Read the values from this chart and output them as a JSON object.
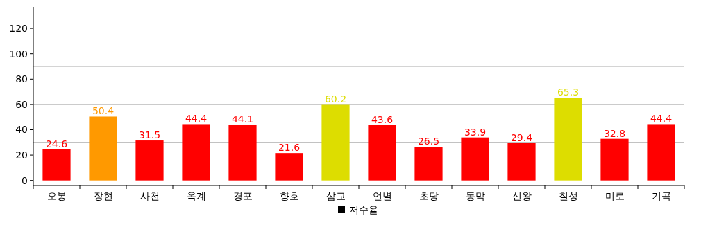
{
  "chart_data": {
    "type": "bar",
    "categories": [
      "오봉",
      "장현",
      "사천",
      "옥계",
      "경포",
      "향호",
      "삼교",
      "언별",
      "초당",
      "동막",
      "신왕",
      "칠성",
      "미로",
      "기곡"
    ],
    "series": [
      {
        "name": "저수율",
        "color": "#000000",
        "values": [
          24.6,
          50.4,
          31.5,
          44.4,
          44.1,
          21.6,
          60.2,
          43.6,
          26.5,
          33.9,
          29.4,
          65.3,
          32.8,
          44.4
        ],
        "colors": [
          "#ff0000",
          "#ff9900",
          "#ff0000",
          "#ff0000",
          "#ff0000",
          "#ff0000",
          "#dddd00",
          "#ff0000",
          "#ff0000",
          "#ff0000",
          "#ff0000",
          "#dddd00",
          "#ff0000",
          "#ff0000"
        ]
      }
    ],
    "ylim": [
      -4,
      137
    ],
    "yticks": [
      0,
      20,
      40,
      60,
      80,
      100,
      120
    ],
    "ref_lines": [
      {
        "axis": "y",
        "value": 30,
        "color": "#aaaaaa"
      },
      {
        "axis": "y",
        "value": 60,
        "color": "#aaaaaa"
      },
      {
        "axis": "y",
        "value": 90,
        "color": "#aaaaaa"
      }
    ],
    "data_labels": true,
    "legend": "bottom",
    "grid": false
  }
}
